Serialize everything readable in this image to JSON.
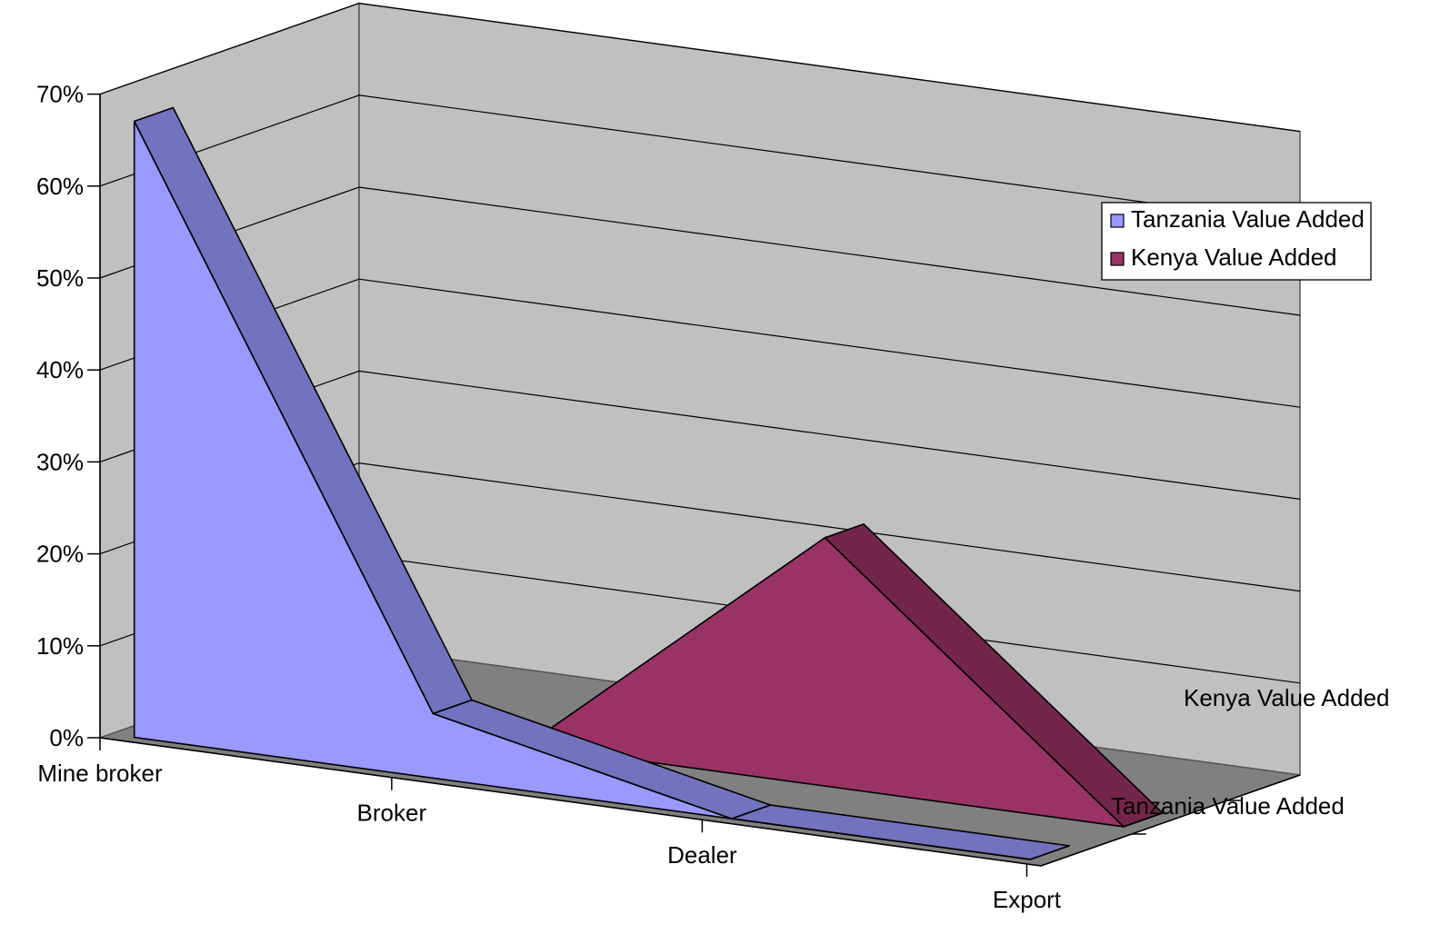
{
  "chart_data": {
    "type": "area",
    "view": "3d",
    "categories": [
      "Mine broker",
      "Broker",
      "Dealer",
      "Export"
    ],
    "series": [
      {
        "name": "Tanzania Value Added",
        "values": [
          67,
          7,
          0,
          0
        ]
      },
      {
        "name": "Kenya Value Added",
        "values": [
          0,
          0,
          27,
          0
        ]
      }
    ],
    "ylim": [
      0,
      70
    ],
    "yticks": [
      "0%",
      "10%",
      "20%",
      "30%",
      "40%",
      "50%",
      "60%",
      "70%"
    ],
    "grid": true,
    "legend": {
      "position": "right",
      "entries": [
        "Tanzania Value Added",
        "Kenya Value Added"
      ]
    },
    "colors": {
      "tanzania_front": "#9999ff",
      "tanzania_side": "#7272be",
      "kenya_front": "#993366",
      "kenya_side": "#732649",
      "wall": "#c0c0c0",
      "floor": "#808080",
      "background": "#ffffff"
    }
  }
}
